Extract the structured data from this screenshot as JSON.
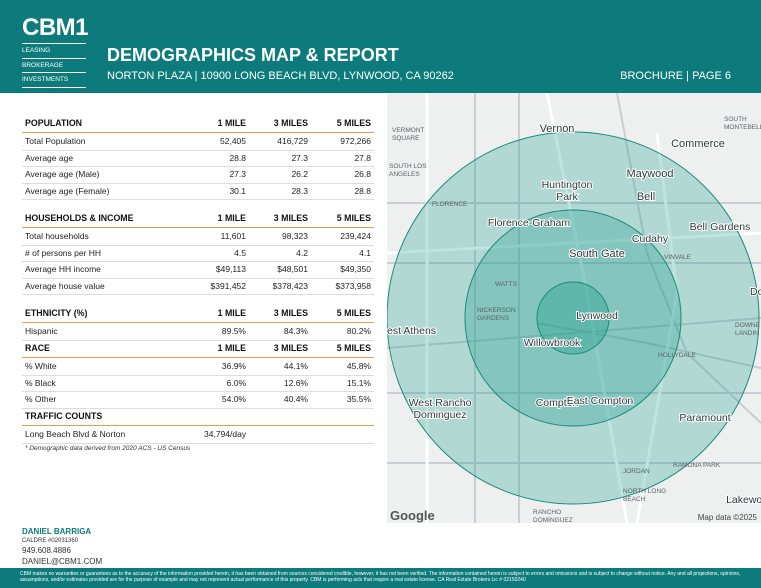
{
  "header": {
    "logo": "CBM1",
    "tagline": [
      "LEASING",
      "BROKERAGE",
      "INVESTMENTS"
    ],
    "title": "DEMOGRAPHICS MAP & REPORT",
    "subtitle": "NORTON PLAZA | 10900 LONG BEACH BLVD, LYNWOOD, CA 90262",
    "page": "BROCHURE | PAGE 6"
  },
  "sections": [
    {
      "header": [
        "POPULATION",
        "1 MILE",
        "3 MILES",
        "5 MILES"
      ],
      "rows": [
        [
          "Total Population",
          "52,405",
          "416,729",
          "972,266"
        ],
        [
          "Average age",
          "28.8",
          "27.3",
          "27.8"
        ],
        [
          "Average age (Male)",
          "27.3",
          "26.2",
          "26.8"
        ],
        [
          "Average age (Female)",
          "30.1",
          "28.3",
          "28.8"
        ]
      ]
    },
    {
      "header": [
        "HOUSEHOLDS & INCOME",
        "1 MILE",
        "3 MILES",
        "5 MILES"
      ],
      "rows": [
        [
          "Total households",
          "11,601",
          "98,323",
          "239,424"
        ],
        [
          "# of persons per HH",
          "4.5",
          "4.2",
          "4.1"
        ],
        [
          "Average HH income",
          "$49,113",
          "$48,501",
          "$49,350"
        ],
        [
          "Average house value",
          "$391,452",
          "$378,423",
          "$373,958"
        ]
      ]
    },
    {
      "header": [
        "ETHNICITY (%)",
        "1 MILE",
        "3 MILES",
        "5 MILES"
      ],
      "rows": [
        [
          "Hispanic",
          "89.5%",
          "84.3%",
          "80.2%"
        ]
      ]
    },
    {
      "header": [
        "RACE",
        "1 MILE",
        "3 MILES",
        "5 MILES"
      ],
      "rows": [
        [
          "% White",
          "36.9%",
          "44.1%",
          "45.8%"
        ],
        [
          "% Black",
          "6.0%",
          "12.6%",
          "15.1%"
        ],
        [
          "% Other",
          "54.0%",
          "40.4%",
          "35.5%"
        ]
      ]
    },
    {
      "header": [
        "TRAFFIC COUNTS"
      ],
      "rows": [
        [
          "Long Beach Blvd & Norton",
          "34,794/day"
        ]
      ]
    }
  ],
  "footnote": "* Demographic data derived from 2020 ACS - US Census",
  "agent": {
    "name": "DANIEL BARRIGA",
    "license": "CALDRE #02031360",
    "phone": "949.608.4886",
    "email": "DANIEL@CBM1.COM"
  },
  "disclaimer": "CBM makes no warranties or guarantees as to the accuracy of the information provided herein, it has been obtained from sources considered credible, however, it has not been verified. The information contained herein is subject to errors and omissions and is subject to change without notice. Any and all projections, opinions, assumptions, and/or estimates provided are for the purpose of example and may not represent actual performance of this property. CBM is performing acts that require a real estate license. CA Real Estate Brokers Lic # 02150240",
  "map": {
    "labels": [
      [
        "Vernon"
      ],
      [
        "Commerce"
      ],
      [
        "Huntington",
        "Park"
      ],
      [
        "Maywood"
      ],
      [
        "Bell"
      ],
      [
        "Florence-Graham"
      ],
      [
        "Cudahy"
      ],
      [
        "Bell Gardens"
      ],
      [
        "South Gate"
      ],
      [
        "Downey"
      ],
      [
        "Lynwood"
      ],
      [
        "est Athens"
      ],
      [
        "Willowbrook"
      ],
      [
        "West Rancho",
        "Dominguez"
      ],
      [
        "Compton"
      ],
      [
        "East Compton"
      ],
      [
        "Paramount"
      ],
      [
        "Lakewood"
      ],
      [
        "VERMONT",
        "SQUARE"
      ],
      [
        "SOUTH LOS",
        "ANGELES"
      ],
      [
        "FLORENCE"
      ],
      [
        "WATTS"
      ],
      [
        "NICKERSON",
        "GARDENS"
      ],
      [
        "HOLLYDALE"
      ],
      [
        "VINVALE"
      ],
      [
        "JORDAN"
      ],
      [
        "RAMONA PARK"
      ],
      [
        "NORTH LONG",
        "BEACH"
      ],
      [
        "RANCHO",
        "DOMINGUEZ"
      ],
      [
        "SOUTH",
        "MONTEBELLO"
      ],
      [
        "DOWNE",
        "LANDIN"
      ]
    ],
    "google": "Google",
    "attribution": "Map data ©2025"
  }
}
